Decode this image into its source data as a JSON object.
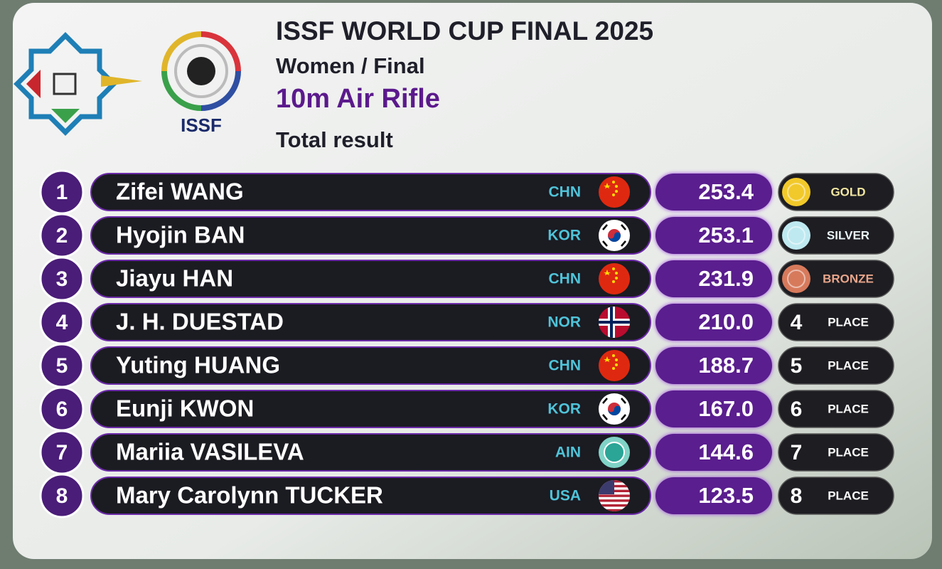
{
  "header": {
    "title": "ISSF WORLD CUP FINAL 2025",
    "subtitle": "Women / Final",
    "event": "10m Air Rifle",
    "result_label": "Total result",
    "logo_text": "ISSF"
  },
  "table": {
    "rows": [
      {
        "rank": 1,
        "name": "Zifei WANG",
        "nation": "CHN",
        "score": "253.4",
        "medal": "GOLD"
      },
      {
        "rank": 2,
        "name": "Hyojin BAN",
        "nation": "KOR",
        "score": "253.1",
        "medal": "SILVER"
      },
      {
        "rank": 3,
        "name": "Jiayu HAN",
        "nation": "CHN",
        "score": "231.9",
        "medal": "BRONZE"
      },
      {
        "rank": 4,
        "name": "J. H. DUESTAD",
        "nation": "NOR",
        "score": "210.0",
        "medal": "PLACE"
      },
      {
        "rank": 5,
        "name": "Yuting HUANG",
        "nation": "CHN",
        "score": "188.7",
        "medal": "PLACE"
      },
      {
        "rank": 6,
        "name": "Eunji KWON",
        "nation": "KOR",
        "score": "167.0",
        "medal": "PLACE"
      },
      {
        "rank": 7,
        "name": "Mariia VASILEVA",
        "nation": "AIN",
        "score": "144.6",
        "medal": "PLACE"
      },
      {
        "rank": 8,
        "name": "Mary Carolynn TUCKER",
        "nation": "USA",
        "score": "123.5",
        "medal": "PLACE"
      }
    ]
  }
}
